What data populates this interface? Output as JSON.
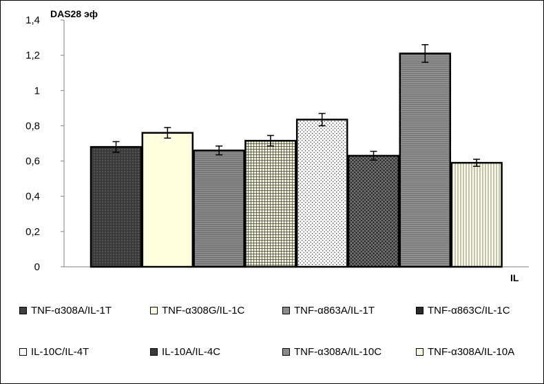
{
  "chart_data": {
    "type": "bar",
    "ylabel": "DAS28 эф",
    "xlabel": "IL",
    "ylim": [
      0,
      1.4
    ],
    "yticks": [
      "0",
      "0,2",
      "0,4",
      "0,6",
      "0,8",
      "1",
      "1,2",
      "1,4"
    ],
    "grid": false,
    "legend_position": "bottom",
    "series": [
      {
        "name": "TNF-α308A/IL-1T",
        "value": 0.68,
        "error": 0.03,
        "color": "#404040"
      },
      {
        "name": "TNF-α308G/IL-1C",
        "value": 0.76,
        "error": 0.03,
        "color": "#ffffe0"
      },
      {
        "name": "TNF-α863A/IL-1T",
        "value": 0.66,
        "error": 0.025,
        "color": "#8c8c8c"
      },
      {
        "name": "TNF-α863C/IL-1C",
        "value": 0.715,
        "error": 0.03,
        "color": "#2a2a2a"
      },
      {
        "name": "IL-10C/IL-4T",
        "value": 0.835,
        "error": 0.035,
        "color": "#ffffff"
      },
      {
        "name": "IL-10A/IL-4C",
        "value": 0.63,
        "error": 0.025,
        "color": "#3a3a3a"
      },
      {
        "name": "TNF-α308A/IL-10C",
        "value": 1.21,
        "error": 0.05,
        "color": "#8a8a8a"
      },
      {
        "name": "TNF-α308A/IL-10A",
        "value": 0.59,
        "error": 0.02,
        "color": "#fbfbe6"
      }
    ]
  }
}
